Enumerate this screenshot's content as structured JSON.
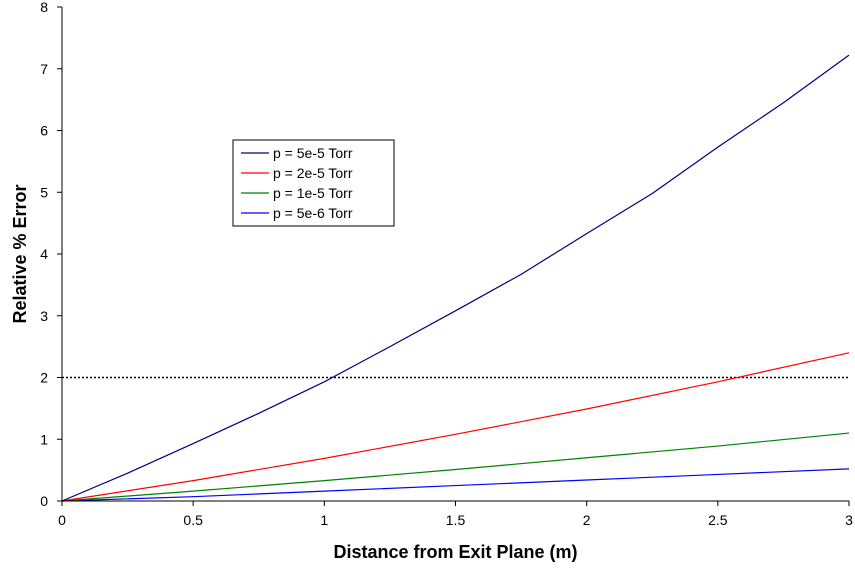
{
  "chart_data": {
    "type": "line",
    "title": "",
    "xlabel": "Distance from Exit Plane (m)",
    "ylabel": "Relative % Error",
    "xlim": [
      0,
      3
    ],
    "ylim": [
      0,
      8
    ],
    "x_ticks": [
      "0",
      "0.5",
      "1",
      "1.5",
      "2",
      "2.5",
      "3"
    ],
    "y_ticks": [
      "0",
      "1",
      "2",
      "3",
      "4",
      "5",
      "6",
      "7",
      "8"
    ],
    "grid": false,
    "legend_position": "upper-left-center",
    "series": [
      {
        "name": "p = 5e-5 Torr",
        "color": "#000080",
        "x": [
          0,
          0.25,
          0.5,
          0.75,
          1,
          1.25,
          1.5,
          1.75,
          2,
          2.25,
          2.5,
          2.75,
          3
        ],
        "y": [
          0,
          0.45,
          0.93,
          1.42,
          1.93,
          2.5,
          3.08,
          3.67,
          4.33,
          4.98,
          5.73,
          6.45,
          7.22
        ]
      },
      {
        "name": "p = 2e-5 Torr",
        "color": "#ff0000",
        "x": [
          0,
          0.5,
          1,
          1.5,
          2,
          2.5,
          3
        ],
        "y": [
          0,
          0.33,
          0.69,
          1.08,
          1.49,
          1.93,
          2.4
        ]
      },
      {
        "name": "p = 1e-5 Torr",
        "color": "#008000",
        "x": [
          0,
          0.5,
          1,
          1.5,
          2,
          2.5,
          3
        ],
        "y": [
          0,
          0.16,
          0.33,
          0.51,
          0.7,
          0.89,
          1.1
        ]
      },
      {
        "name": "p = 5e-6 Torr",
        "color": "#0000ff",
        "x": [
          0,
          0.5,
          1,
          1.5,
          2,
          2.5,
          3
        ],
        "y": [
          0,
          0.07,
          0.16,
          0.25,
          0.34,
          0.43,
          0.52
        ]
      }
    ],
    "reference_line": {
      "y": 2,
      "style": "dotted",
      "color": "#000000"
    }
  }
}
